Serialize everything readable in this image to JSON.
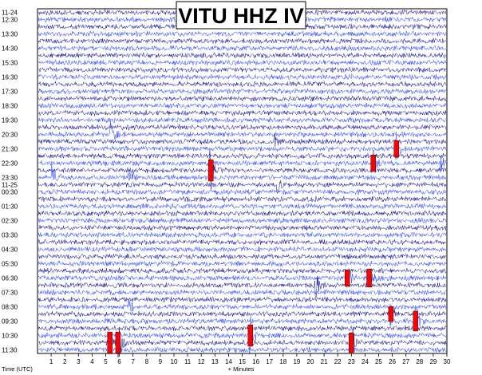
{
  "chart_data": {
    "type": "line",
    "title": "VITU HHZ IV",
    "xlabel": "+ Minutes",
    "time_axis_label": "Time (UTC)",
    "xlim": [
      0,
      30
    ],
    "x_ticks": [
      1,
      2,
      3,
      4,
      5,
      6,
      7,
      8,
      9,
      10,
      11,
      12,
      13,
      14,
      15,
      16,
      17,
      18,
      19,
      20,
      21,
      22,
      23,
      24,
      25,
      26,
      27,
      28,
      29,
      30
    ],
    "grid": true,
    "row_count": 48,
    "row_labels": [
      {
        "row": 0,
        "text": "11-24"
      },
      {
        "row": 1,
        "text": "12:30"
      },
      {
        "row": 3,
        "text": "13:30"
      },
      {
        "row": 5,
        "text": "14:30"
      },
      {
        "row": 7,
        "text": "15:30"
      },
      {
        "row": 9,
        "text": "16:30"
      },
      {
        "row": 11,
        "text": "17:30"
      },
      {
        "row": 13,
        "text": "18:30"
      },
      {
        "row": 15,
        "text": "19:30"
      },
      {
        "row": 17,
        "text": "20:30"
      },
      {
        "row": 19,
        "text": "21:30"
      },
      {
        "row": 21,
        "text": "22:30"
      },
      {
        "row": 23,
        "text": "23:30"
      },
      {
        "row": 24,
        "text": "11-25"
      },
      {
        "row": 25,
        "text": "00:30"
      },
      {
        "row": 27,
        "text": "01:30"
      },
      {
        "row": 29,
        "text": "02:30"
      },
      {
        "row": 31,
        "text": "03:30"
      },
      {
        "row": 33,
        "text": "04:30"
      },
      {
        "row": 35,
        "text": "05:30"
      },
      {
        "row": 37,
        "text": "06:30"
      },
      {
        "row": 39,
        "text": "07:30"
      },
      {
        "row": 41,
        "text": "08:30"
      },
      {
        "row": 43,
        "text": "09:30"
      },
      {
        "row": 45,
        "text": "10:30"
      },
      {
        "row": 47,
        "text": "11:30"
      }
    ],
    "trace_colors": [
      "#0b0b8c",
      "#1e3cff"
    ],
    "pick_color": "#ff0000",
    "events": [
      {
        "row": 17.2,
        "minute": 5.4,
        "amp": 1.0,
        "pick": false
      },
      {
        "row": 18.6,
        "minute": 17.4,
        "amp": 0.5,
        "pick": false
      },
      {
        "row": 19.5,
        "minute": 26.3,
        "amp": 1.0,
        "pick": true
      },
      {
        "row": 21.2,
        "minute": 24.6,
        "amp": 1.0,
        "pick": true
      },
      {
        "row": 21.7,
        "minute": 29.6,
        "amp": 0.5,
        "pick": false
      },
      {
        "row": 22.6,
        "minute": 12.7,
        "amp": 1.3,
        "pick": true
      },
      {
        "row": 23.6,
        "minute": 1.1,
        "amp": 0.9,
        "pick": false
      },
      {
        "row": 23.6,
        "minute": 6.7,
        "amp": 0.7,
        "pick": false
      },
      {
        "row": 24.4,
        "minute": 17.6,
        "amp": 0.5,
        "pick": false
      },
      {
        "row": 37.1,
        "minute": 22.7,
        "amp": 1.0,
        "pick": true
      },
      {
        "row": 37.1,
        "minute": 24.3,
        "amp": 1.1,
        "pick": true
      },
      {
        "row": 38.0,
        "minute": 20.4,
        "amp": 0.9,
        "pick": false
      },
      {
        "row": 41.6,
        "minute": 6.7,
        "amp": 0.8,
        "pick": false
      },
      {
        "row": 42.6,
        "minute": 25.9,
        "amp": 0.9,
        "pick": true
      },
      {
        "row": 43.6,
        "minute": 27.7,
        "amp": 1.2,
        "pick": true
      },
      {
        "row": 45.6,
        "minute": 15.6,
        "amp": 1.3,
        "pick": true
      },
      {
        "row": 46.7,
        "minute": 5.3,
        "amp": 1.3,
        "pick": true
      },
      {
        "row": 46.7,
        "minute": 5.9,
        "amp": 1.3,
        "pick": true
      },
      {
        "row": 46.8,
        "minute": 23.0,
        "amp": 1.2,
        "pick": true
      }
    ]
  }
}
